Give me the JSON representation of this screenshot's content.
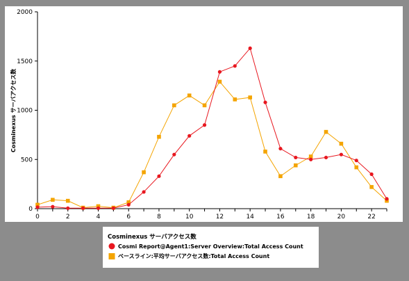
{
  "colors": {
    "frame_bg": "#8c8c8c",
    "panel_bg": "#ffffff",
    "series1": "#e8171f",
    "series2": "#f4a400",
    "axis": "#000000"
  },
  "chart_data": {
    "type": "line",
    "ylabel": "Cosminexus サーバアクセス数",
    "xlabel": "",
    "title": "",
    "xlim": [
      0,
      23
    ],
    "ylim": [
      0,
      2000
    ],
    "yticks": [
      "0",
      "500",
      "1000",
      "1500",
      "2000"
    ],
    "xticks": [
      "0",
      "2",
      "4",
      "6",
      "8",
      "10",
      "12",
      "14",
      "16",
      "18",
      "20",
      "22"
    ],
    "grid": false,
    "legend_position": "bottom-left",
    "legend_title": "Cosminexus サーバアクセス数",
    "x": [
      0,
      1,
      2,
      3,
      4,
      5,
      6,
      7,
      8,
      9,
      10,
      11,
      12,
      13,
      14,
      15,
      16,
      17,
      18,
      19,
      20,
      21,
      22,
      23
    ],
    "series": [
      {
        "name": "Cosmi Report@Agent1:Server Overview:Total Access Count",
        "marker": "circle",
        "color": "#e8171f",
        "values": [
          15,
          20,
          5,
          5,
          5,
          5,
          40,
          170,
          330,
          550,
          740,
          850,
          1390,
          1450,
          1630,
          1080,
          610,
          520,
          500,
          520,
          550,
          490,
          350,
          100
        ]
      },
      {
        "name": "ベースライン:平均サーバアクセス数:Total Access Count",
        "marker": "square",
        "color": "#f4a400",
        "values": [
          40,
          90,
          80,
          10,
          25,
          10,
          65,
          370,
          730,
          1050,
          1150,
          1050,
          1290,
          1110,
          1130,
          580,
          330,
          440,
          530,
          780,
          660,
          420,
          220,
          80
        ]
      }
    ]
  }
}
